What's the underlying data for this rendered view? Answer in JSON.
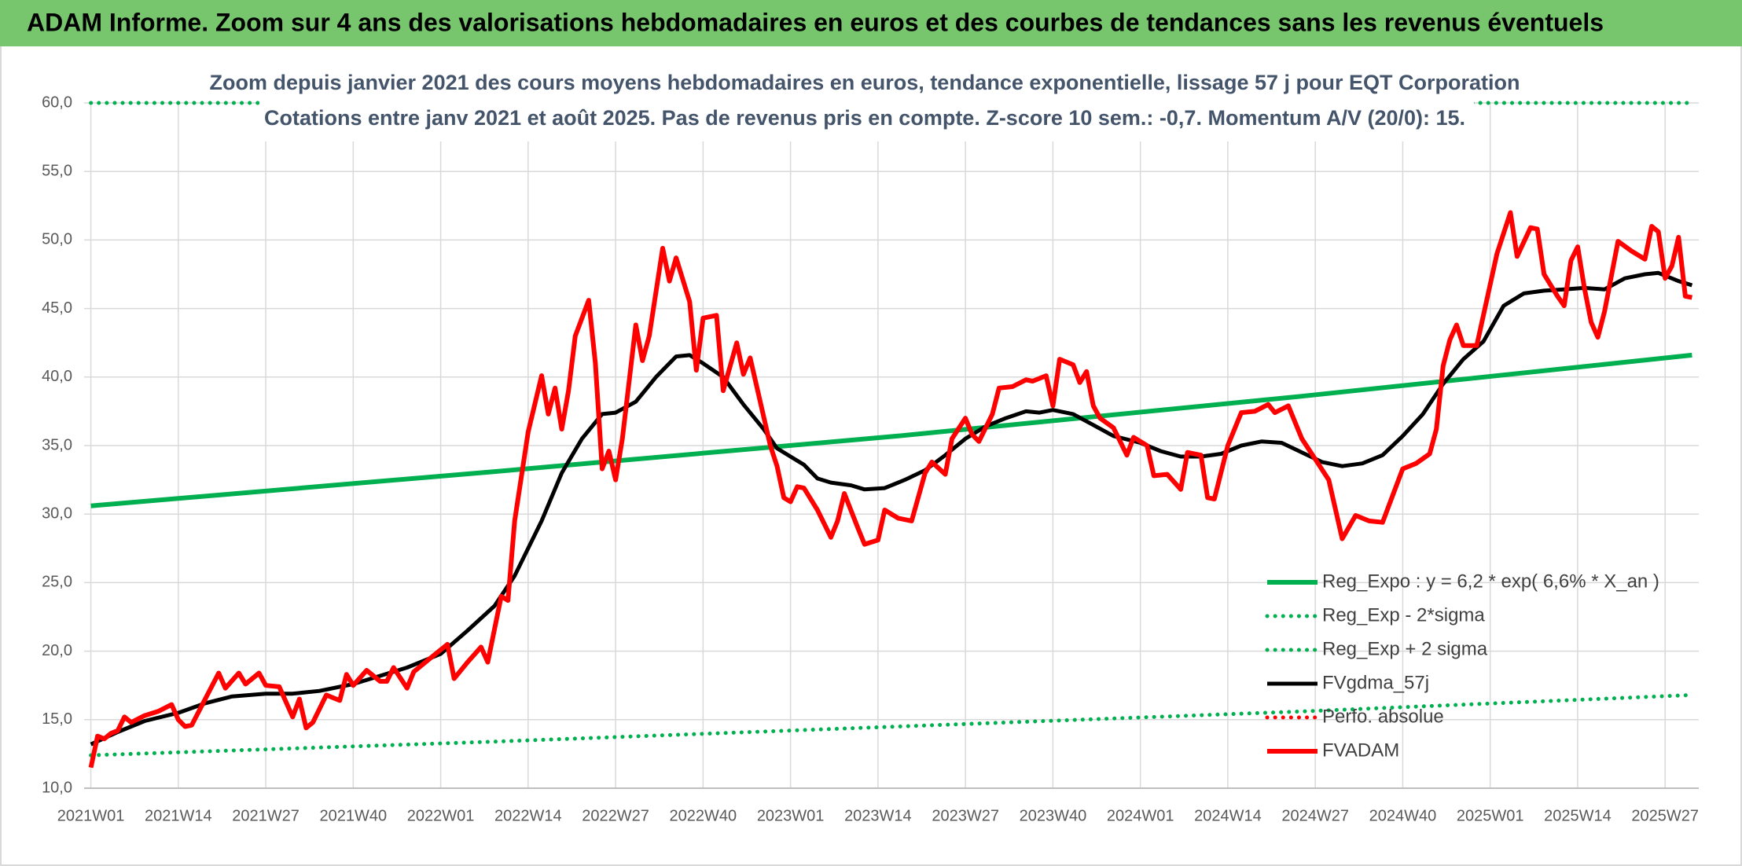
{
  "chart_data": {
    "type": "line",
    "title": "ADAM Informe. Zoom sur 4 ans des valorisations hebdomadaires en euros et des courbes de tendances sans les revenus éventuels",
    "subtitle": [
      "Zoom depuis janvier 2021 des cours moyens hebdomadaires en euros, tendance exponentielle, lissage 57 j pour EQT Corporation",
      "Cotations entre janv 2021 et août 2025. Pas de revenus pris en compte. Z-score 10 sem.: -0,7. Momentum A/V (20/0): 15."
    ],
    "xlim": [
      -1,
      239
    ],
    "xticks": [
      {
        "value": 0,
        "label": "2021W01"
      },
      {
        "value": 13,
        "label": "2021W14"
      },
      {
        "value": 26,
        "label": "2021W27"
      },
      {
        "value": 39,
        "label": "2021W40"
      },
      {
        "value": 52,
        "label": "2022W01"
      },
      {
        "value": 65,
        "label": "2022W14"
      },
      {
        "value": 78,
        "label": "2022W27"
      },
      {
        "value": 91,
        "label": "2022W40"
      },
      {
        "value": 104,
        "label": "2023W01"
      },
      {
        "value": 117,
        "label": "2023W14"
      },
      {
        "value": 130,
        "label": "2023W27"
      },
      {
        "value": 143,
        "label": "2023W40"
      },
      {
        "value": 156,
        "label": "2024W01"
      },
      {
        "value": 169,
        "label": "2024W14"
      },
      {
        "value": 182,
        "label": "2024W27"
      },
      {
        "value": 195,
        "label": "2024W40"
      },
      {
        "value": 208,
        "label": "2025W01"
      },
      {
        "value": 221,
        "label": "2025W14"
      },
      {
        "value": 234,
        "label": "2025W27"
      }
    ],
    "ylim": [
      10,
      60
    ],
    "yticks": [
      {
        "value": 10,
        "label": "10,0"
      },
      {
        "value": 15,
        "label": "15,0"
      },
      {
        "value": 20,
        "label": "20,0"
      },
      {
        "value": 25,
        "label": "25,0"
      },
      {
        "value": 30,
        "label": "30,0"
      },
      {
        "value": 35,
        "label": "35,0"
      },
      {
        "value": 40,
        "label": "40,0"
      },
      {
        "value": 45,
        "label": "45,0"
      },
      {
        "value": 50,
        "label": "50,0"
      },
      {
        "value": 55,
        "label": "55,0"
      },
      {
        "value": 60,
        "label": "60,0"
      }
    ],
    "grid": true,
    "legend": "bottom-right",
    "series": [
      {
        "name": "Reg_Expo : y = 6,2 * exp( 6,6% *  X_an )",
        "color": "#00b050",
        "style": "solid",
        "width": 6,
        "x": [
          0,
          60,
          120,
          180,
          238
        ],
        "values": [
          30.6,
          33.1,
          35.7,
          38.6,
          41.6
        ]
      },
      {
        "name": "Reg_Exp - 2*sigma",
        "color": "#00b050",
        "style": "dotted",
        "width": 5,
        "x": [
          0,
          60,
          120,
          180,
          238
        ],
        "values": [
          12.4,
          13.4,
          14.5,
          15.6,
          16.8
        ]
      },
      {
        "name": "Reg_Exp + 2 sigma",
        "color": "#00b050",
        "style": "dotted",
        "width": 5,
        "x": [
          0,
          238
        ],
        "values": [
          60,
          60
        ]
      },
      {
        "name": "FVgdma_57j",
        "color": "#000000",
        "style": "solid",
        "width": 5,
        "x": [
          0,
          4,
          8,
          13,
          17,
          21,
          26,
          30,
          34,
          39,
          43,
          47,
          52,
          56,
          60,
          63,
          67,
          70,
          73,
          76,
          78,
          81,
          84,
          87,
          89,
          91,
          94,
          97,
          100,
          102,
          104,
          106,
          108,
          110,
          113,
          115,
          118,
          121,
          124,
          127,
          130,
          133,
          136,
          139,
          141,
          143,
          146,
          149,
          152,
          156,
          159,
          162,
          165,
          168,
          171,
          174,
          177,
          180,
          183,
          186,
          189,
          192,
          195,
          198,
          201,
          204,
          207,
          210,
          213,
          216,
          219,
          222,
          225,
          228,
          231,
          233,
          236,
          238
        ],
        "values": [
          13.2,
          14.1,
          14.9,
          15.5,
          16.2,
          16.7,
          16.9,
          16.9,
          17.1,
          17.6,
          18.2,
          18.8,
          19.8,
          21.5,
          23.3,
          25.5,
          29.5,
          33,
          35.5,
          37.3,
          37.4,
          38.2,
          40,
          41.5,
          41.6,
          41,
          40,
          38,
          36.2,
          34.8,
          34.2,
          33.6,
          32.6,
          32.3,
          32.1,
          31.8,
          31.9,
          32.5,
          33.2,
          34.3,
          35.5,
          36.4,
          37,
          37.5,
          37.4,
          37.6,
          37.3,
          36.5,
          35.7,
          35.2,
          34.6,
          34.2,
          34.2,
          34.4,
          35,
          35.3,
          35.2,
          34.5,
          33.8,
          33.5,
          33.7,
          34.3,
          35.7,
          37.3,
          39.5,
          41.3,
          42.6,
          45.2,
          46.1,
          46.3,
          46.4,
          46.5,
          46.4,
          47.2,
          47.5,
          47.6,
          47,
          46.7
        ]
      },
      {
        "name": "Perfo. absolue",
        "color": "#ff0000",
        "style": "dotted",
        "width": 5,
        "x": [],
        "values": []
      },
      {
        "name": "FVADAM",
        "color": "#ff0000",
        "style": "solid",
        "width": 6,
        "x": [
          0,
          1,
          2,
          3,
          4,
          5,
          6,
          8,
          10,
          12,
          13,
          14,
          15,
          17,
          19,
          20,
          22,
          23,
          25,
          26,
          28,
          30,
          31,
          32,
          33,
          35,
          37,
          38,
          39,
          41,
          43,
          44,
          45,
          47,
          48,
          51,
          53,
          54,
          56,
          58,
          59,
          61,
          62,
          63,
          65,
          67,
          68,
          69,
          70,
          71,
          72,
          74,
          75,
          76,
          77,
          78,
          79,
          81,
          82,
          83,
          85,
          86,
          87,
          89,
          90,
          91,
          93,
          94,
          96,
          97,
          98,
          101,
          102,
          103,
          104,
          105,
          106,
          108,
          110,
          111,
          112,
          114,
          115,
          117,
          118,
          120,
          122,
          124,
          125,
          127,
          128,
          130,
          131,
          132,
          134,
          135,
          137,
          139,
          140,
          142,
          143,
          144,
          146,
          147,
          148,
          149,
          150,
          152,
          153,
          154,
          155,
          157,
          158,
          160,
          162,
          163,
          165,
          166,
          167,
          169,
          171,
          173,
          175,
          176,
          178,
          180,
          182,
          184,
          186,
          188,
          190,
          192,
          193,
          195,
          197,
          199,
          200,
          201,
          202,
          203,
          204,
          206,
          209,
          211,
          212,
          214,
          215,
          216,
          218,
          219,
          220,
          221,
          222,
          223,
          224,
          225,
          227,
          229,
          231,
          232,
          233,
          234,
          235,
          236,
          237,
          238
        ],
        "values": [
          11.5,
          13.8,
          13.6,
          14,
          14.2,
          15.2,
          14.8,
          15.3,
          15.6,
          16.1,
          15,
          14.5,
          14.6,
          16.5,
          18.4,
          17.3,
          18.4,
          17.6,
          18.4,
          17.5,
          17.4,
          15.2,
          16.5,
          14.4,
          14.8,
          16.8,
          16.4,
          18.3,
          17.5,
          18.6,
          17.8,
          17.8,
          18.8,
          17.3,
          18.5,
          19.7,
          20.5,
          18,
          19.2,
          20.3,
          19.2,
          24,
          23.7,
          29.5,
          36,
          40.1,
          37.3,
          39.2,
          36.2,
          39,
          43,
          45.6,
          41,
          33.3,
          34.6,
          32.5,
          35.5,
          43.8,
          41.2,
          43,
          49.4,
          47,
          48.7,
          45.5,
          40.5,
          44.3,
          44.5,
          39,
          42.5,
          40.2,
          41.4,
          35,
          33.5,
          31.2,
          30.9,
          32,
          31.9,
          30.3,
          28.3,
          29.5,
          31.5,
          29,
          27.8,
          28.1,
          30.3,
          29.7,
          29.5,
          33,
          33.8,
          32.9,
          35.5,
          37,
          35.8,
          35.3,
          37.3,
          39.2,
          39.3,
          39.8,
          39.7,
          40.1,
          37.9,
          41.3,
          40.9,
          39.6,
          40.4,
          37.9,
          37,
          36.3,
          35.3,
          34.3,
          35.6,
          35,
          32.8,
          32.9,
          31.8,
          34.5,
          34.3,
          31.2,
          31.1,
          35,
          37.4,
          37.5,
          38,
          37.4,
          37.9,
          35.5,
          34,
          32.5,
          28.2,
          29.9,
          29.5,
          29.4,
          30.7,
          33.3,
          33.7,
          34.4,
          36.2,
          40.8,
          42.7,
          43.8,
          42.3,
          42.3,
          49,
          52,
          48.8,
          50.9,
          50.8,
          47.5,
          45.9,
          45.2,
          48.5,
          49.5,
          46.5,
          44,
          42.9,
          44.8,
          49.9,
          49.2,
          48.6,
          51,
          50.6,
          47.2,
          48.1,
          50.2,
          45.9,
          45.8
        ]
      }
    ]
  }
}
